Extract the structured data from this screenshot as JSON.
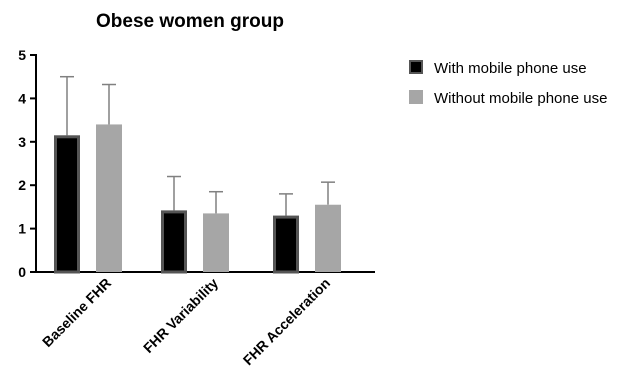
{
  "chart_data": {
    "type": "bar",
    "title": "Obese women group",
    "xlabel": "",
    "ylabel": "",
    "categories": [
      "Baseline FHR",
      "FHR Variability",
      "FHR Acceleration"
    ],
    "ylim": [
      0,
      5
    ],
    "yticks": [
      0,
      1,
      2,
      3,
      4,
      5
    ],
    "series": [
      {
        "name": "With mobile phone use",
        "color": "#000000",
        "edge_color": "#555555",
        "values": [
          3.15,
          1.42,
          1.3
        ],
        "error_upper": [
          4.5,
          2.2,
          1.8
        ]
      },
      {
        "name": "Without mobile phone use",
        "color": "#a6a6a6",
        "edge_color": "#a6a6a6",
        "values": [
          3.4,
          1.35,
          1.55
        ],
        "error_upper": [
          4.32,
          1.85,
          2.07
        ]
      }
    ],
    "error_bars": "upper-only",
    "legend_position": "right",
    "grid": false
  }
}
